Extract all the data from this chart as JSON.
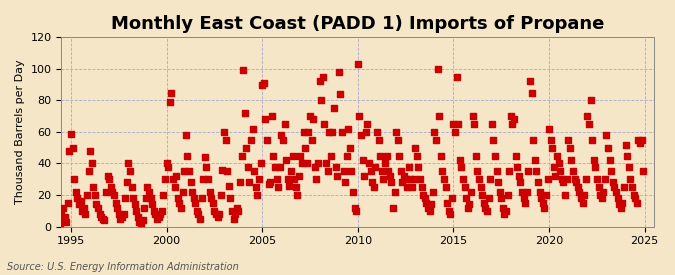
{
  "title": "Monthly East Coast (PADD 1) Imports of Propane",
  "ylabel": "Thousand Barrels per Day",
  "source_text": "Source: U.S. Energy Information Administration",
  "xlim": [
    1994.5,
    2025.5
  ],
  "ylim": [
    0,
    120
  ],
  "yticks": [
    0,
    20,
    40,
    60,
    80,
    100,
    120
  ],
  "xticks": [
    1995,
    2000,
    2005,
    2010,
    2015,
    2020,
    2025
  ],
  "background_color": "#f5e6c8",
  "plot_bg_color": "#f5e6c8",
  "marker_color": "#cc0000",
  "marker_size_s": 16,
  "grid_color": "#aaaacc",
  "grid_style": "--",
  "title_fontsize": 13,
  "label_fontsize": 8,
  "tick_fontsize": 8,
  "source_fontsize": 7,
  "dates": [
    1994.083,
    1994.167,
    1994.25,
    1994.333,
    1994.417,
    1994.5,
    1994.583,
    1994.667,
    1994.75,
    1994.833,
    1994.917,
    1995.0,
    1995.083,
    1995.167,
    1995.25,
    1995.333,
    1995.417,
    1995.5,
    1995.583,
    1995.667,
    1995.75,
    1995.833,
    1995.917,
    1996.0,
    1996.083,
    1996.167,
    1996.25,
    1996.333,
    1996.417,
    1996.5,
    1996.583,
    1996.667,
    1996.75,
    1996.833,
    1996.917,
    1997.0,
    1997.083,
    1997.167,
    1997.25,
    1997.333,
    1997.417,
    1997.5,
    1997.583,
    1997.667,
    1997.75,
    1997.833,
    1997.917,
    1998.0,
    1998.083,
    1998.167,
    1998.25,
    1998.333,
    1998.417,
    1998.5,
    1998.583,
    1998.667,
    1998.75,
    1998.833,
    1998.917,
    1999.0,
    1999.083,
    1999.167,
    1999.25,
    1999.333,
    1999.417,
    1999.5,
    1999.583,
    1999.667,
    1999.75,
    1999.833,
    1999.917,
    2000.0,
    2000.083,
    2000.167,
    2000.25,
    2000.333,
    2000.417,
    2000.5,
    2000.583,
    2000.667,
    2000.75,
    2000.833,
    2000.917,
    2001.0,
    2001.083,
    2001.167,
    2001.25,
    2001.333,
    2001.417,
    2001.5,
    2001.583,
    2001.667,
    2001.75,
    2001.833,
    2001.917,
    2002.0,
    2002.083,
    2002.167,
    2002.25,
    2002.333,
    2002.417,
    2002.5,
    2002.583,
    2002.667,
    2002.75,
    2002.833,
    2002.917,
    2003.0,
    2003.083,
    2003.167,
    2003.25,
    2003.333,
    2003.417,
    2003.5,
    2003.583,
    2003.667,
    2003.75,
    2003.833,
    2003.917,
    2004.0,
    2004.083,
    2004.167,
    2004.25,
    2004.333,
    2004.417,
    2004.5,
    2004.583,
    2004.667,
    2004.75,
    2004.833,
    2004.917,
    2005.0,
    2005.083,
    2005.167,
    2005.25,
    2005.333,
    2005.417,
    2005.5,
    2005.583,
    2005.667,
    2005.75,
    2005.833,
    2005.917,
    2006.0,
    2006.083,
    2006.167,
    2006.25,
    2006.333,
    2006.417,
    2006.5,
    2006.583,
    2006.667,
    2006.75,
    2006.833,
    2006.917,
    2007.0,
    2007.083,
    2007.167,
    2007.25,
    2007.333,
    2007.417,
    2007.5,
    2007.583,
    2007.667,
    2007.75,
    2007.833,
    2007.917,
    2008.0,
    2008.083,
    2008.167,
    2008.25,
    2008.333,
    2008.417,
    2008.5,
    2008.583,
    2008.667,
    2008.75,
    2008.833,
    2008.917,
    2009.0,
    2009.083,
    2009.167,
    2009.25,
    2009.333,
    2009.417,
    2009.5,
    2009.583,
    2009.667,
    2009.75,
    2009.833,
    2009.917,
    2010.0,
    2010.083,
    2010.167,
    2010.25,
    2010.333,
    2010.417,
    2010.5,
    2010.583,
    2010.667,
    2010.75,
    2010.833,
    2010.917,
    2011.0,
    2011.083,
    2011.167,
    2011.25,
    2011.333,
    2011.417,
    2011.5,
    2011.583,
    2011.667,
    2011.75,
    2011.833,
    2011.917,
    2012.0,
    2012.083,
    2012.167,
    2012.25,
    2012.333,
    2012.417,
    2012.5,
    2012.583,
    2012.667,
    2012.75,
    2012.833,
    2012.917,
    2013.0,
    2013.083,
    2013.167,
    2013.25,
    2013.333,
    2013.417,
    2013.5,
    2013.583,
    2013.667,
    2013.75,
    2013.833,
    2013.917,
    2014.0,
    2014.083,
    2014.167,
    2014.25,
    2014.333,
    2014.417,
    2014.5,
    2014.583,
    2014.667,
    2014.75,
    2014.833,
    2014.917,
    2015.0,
    2015.083,
    2015.167,
    2015.25,
    2015.333,
    2015.417,
    2015.5,
    2015.583,
    2015.667,
    2015.75,
    2015.833,
    2015.917,
    2016.0,
    2016.083,
    2016.167,
    2016.25,
    2016.333,
    2016.417,
    2016.5,
    2016.583,
    2016.667,
    2016.75,
    2016.833,
    2016.917,
    2017.0,
    2017.083,
    2017.167,
    2017.25,
    2017.333,
    2017.417,
    2017.5,
    2017.583,
    2017.667,
    2017.75,
    2017.833,
    2017.917,
    2018.0,
    2018.083,
    2018.167,
    2018.25,
    2018.333,
    2018.417,
    2018.5,
    2018.583,
    2018.667,
    2018.75,
    2018.833,
    2018.917,
    2019.0,
    2019.083,
    2019.167,
    2019.25,
    2019.333,
    2019.417,
    2019.5,
    2019.583,
    2019.667,
    2019.75,
    2019.833,
    2019.917,
    2020.0,
    2020.083,
    2020.167,
    2020.25,
    2020.333,
    2020.417,
    2020.5,
    2020.583,
    2020.667,
    2020.75,
    2020.833,
    2020.917,
    2021.0,
    2021.083,
    2021.167,
    2021.25,
    2021.333,
    2021.417,
    2021.5,
    2021.583,
    2021.667,
    2021.75,
    2021.833,
    2021.917,
    2022.0,
    2022.083,
    2022.167,
    2022.25,
    2022.333,
    2022.417,
    2022.5,
    2022.583,
    2022.667,
    2022.75,
    2022.833,
    2022.917,
    2023.0,
    2023.083,
    2023.167,
    2023.25,
    2023.333,
    2023.417,
    2023.5,
    2023.583,
    2023.667,
    2023.75,
    2023.833,
    2023.917,
    2024.0,
    2024.083,
    2024.167,
    2024.25,
    2024.333,
    2024.417,
    2024.5,
    2024.583,
    2024.667,
    2024.75,
    2024.833,
    2024.917
  ],
  "values": [
    30,
    15,
    10,
    5,
    2,
    8,
    12,
    6,
    3,
    15,
    48,
    59,
    50,
    30,
    22,
    18,
    14,
    16,
    10,
    12,
    8,
    20,
    35,
    48,
    40,
    25,
    20,
    14,
    12,
    8,
    6,
    5,
    4,
    22,
    32,
    30,
    25,
    22,
    20,
    15,
    12,
    8,
    5,
    6,
    8,
    18,
    28,
    40,
    35,
    25,
    18,
    14,
    10,
    6,
    3,
    2,
    4,
    12,
    18,
    25,
    22,
    18,
    14,
    10,
    8,
    5,
    6,
    8,
    10,
    20,
    30,
    40,
    38,
    79,
    85,
    30,
    25,
    32,
    18,
    15,
    12,
    22,
    35,
    58,
    45,
    35,
    28,
    22,
    18,
    15,
    10,
    8,
    5,
    18,
    30,
    44,
    38,
    30,
    22,
    18,
    15,
    10,
    8,
    6,
    8,
    20,
    36,
    60,
    55,
    35,
    26,
    18,
    10,
    5,
    8,
    12,
    10,
    28,
    45,
    99,
    72,
    50,
    38,
    28,
    55,
    62,
    35,
    25,
    20,
    30,
    40,
    90,
    91,
    68,
    55,
    27,
    28,
    70,
    45,
    38,
    30,
    25,
    38,
    58,
    55,
    65,
    42,
    30,
    26,
    35,
    45,
    30,
    25,
    20,
    32,
    45,
    40,
    60,
    50,
    40,
    60,
    70,
    55,
    68,
    38,
    30,
    40,
    92,
    80,
    95,
    65,
    40,
    35,
    60,
    45,
    60,
    75,
    38,
    32,
    98,
    84,
    60,
    35,
    28,
    45,
    62,
    50,
    35,
    22,
    12,
    10,
    103,
    70,
    58,
    42,
    32,
    60,
    65,
    40,
    35,
    28,
    25,
    38,
    60,
    55,
    45,
    35,
    30,
    40,
    45,
    35,
    32,
    28,
    12,
    22,
    60,
    55,
    45,
    35,
    28,
    32,
    30,
    25,
    38,
    30,
    25,
    30,
    50,
    45,
    38,
    30,
    25,
    20,
    18,
    15,
    12,
    10,
    14,
    22,
    60,
    55,
    100,
    70,
    45,
    35,
    30,
    25,
    15,
    10,
    8,
    18,
    65,
    60,
    95,
    65,
    42,
    38,
    30,
    25,
    18,
    12,
    14,
    22,
    70,
    65,
    45,
    35,
    30,
    25,
    20,
    15,
    12,
    10,
    18,
    30,
    65,
    55,
    45,
    35,
    28,
    22,
    18,
    12,
    8,
    10,
    20,
    35,
    70,
    65,
    68,
    45,
    38,
    32,
    28,
    22,
    18,
    15,
    22,
    35,
    92,
    85,
    55,
    42,
    35,
    28,
    22,
    18,
    15,
    12,
    20,
    30,
    62,
    55,
    50,
    38,
    32,
    45,
    40,
    35,
    30,
    28,
    20,
    30,
    55,
    50,
    42,
    35,
    30,
    28,
    25,
    22,
    18,
    15,
    20,
    30,
    70,
    65,
    80,
    55,
    42,
    38,
    30,
    25,
    20,
    18,
    22,
    30,
    58,
    50,
    42,
    35,
    28,
    25,
    22,
    18,
    14,
    12,
    15,
    25,
    52,
    45,
    38,
    30,
    25,
    20,
    18,
    15,
    55,
    53,
    55,
    35
  ]
}
